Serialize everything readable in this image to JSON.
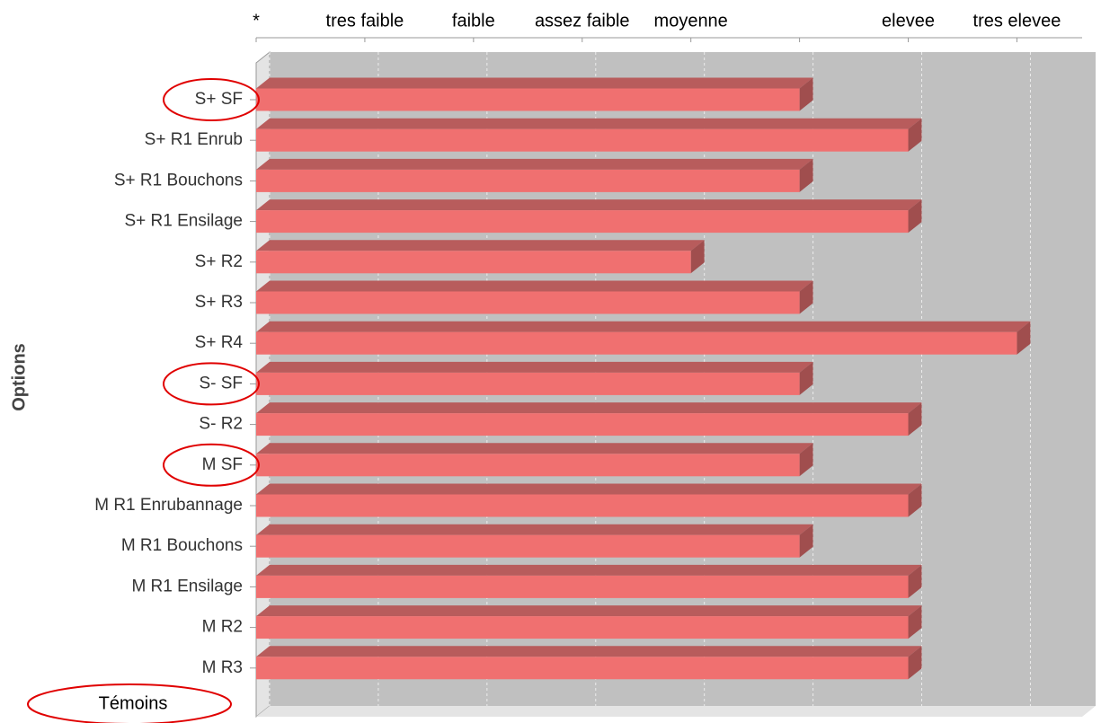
{
  "chart_data": {
    "type": "bar",
    "orientation": "horizontal",
    "y_label": "Options",
    "annotation": "Témoins",
    "categories": [
      "S+ SF",
      "S+ R1 Enrub",
      "S+ R1 Bouchons",
      "S+ R1 Ensilage",
      "S+ R2",
      "S+ R3",
      "S+ R4",
      "S- SF",
      "S- R2",
      "M SF",
      "M R1 Enrubannage",
      "M R1 Bouchons",
      "M R1 Ensilage",
      "M R2",
      "M R3"
    ],
    "values": [
      5,
      6,
      5,
      6,
      4,
      5,
      7,
      5,
      6,
      5,
      6,
      5,
      6,
      6,
      6
    ],
    "color": "#f07070",
    "xlim": [
      0,
      7.6
    ],
    "xticks": [
      {
        "value": 0,
        "label": "*"
      },
      {
        "value": 1,
        "label": "tres faible"
      },
      {
        "value": 2,
        "label": "faible"
      },
      {
        "value": 3,
        "label": "assez faible"
      },
      {
        "value": 4,
        "label": "moyenne"
      },
      {
        "value": 5,
        "label": null
      },
      {
        "value": 6,
        "label": "elevee"
      },
      {
        "value": 7,
        "label": "tres elevee"
      }
    ],
    "grid": true
  }
}
